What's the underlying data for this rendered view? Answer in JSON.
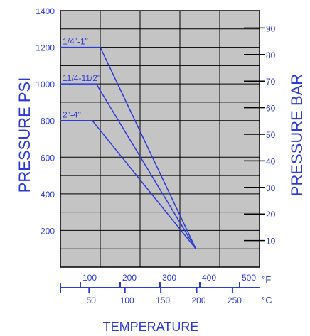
{
  "chart_data": {
    "type": "line",
    "ylabel_left": "PRESSURE PSI",
    "ylabel_right": "PRESSURE BAR",
    "xlabel": "TEMPERATURE",
    "left_axis": {
      "ticks": [
        200,
        400,
        600,
        800,
        1000,
        1200,
        1400
      ],
      "ylim": [
        0,
        1400
      ]
    },
    "right_axis": {
      "ticks": [
        10,
        20,
        30,
        40,
        50,
        60,
        70,
        80,
        90
      ]
    },
    "fahrenheit_axis": {
      "unit": "°F",
      "ticks": [
        100,
        200,
        300,
        400,
        500
      ],
      "xlim": [
        50,
        550
      ]
    },
    "celsius_axis": {
      "unit": "°C",
      "ticks": [
        50,
        100,
        150,
        200,
        250
      ]
    },
    "grid": true,
    "colors": {
      "series": "#2b3bd9",
      "plot_bg": "#c4c4c4",
      "grid": "#000000"
    },
    "series": [
      {
        "name": "1/4\"-1\"",
        "x": [
          50,
          150,
          390
        ],
        "y": [
          1200,
          1200,
          100
        ]
      },
      {
        "name": "11/4-11/2\"",
        "x": [
          50,
          140,
          390
        ],
        "y": [
          1000,
          1000,
          100
        ]
      },
      {
        "name": "2\"-4\"",
        "x": [
          50,
          130,
          390
        ],
        "y": [
          800,
          800,
          100
        ]
      }
    ]
  }
}
